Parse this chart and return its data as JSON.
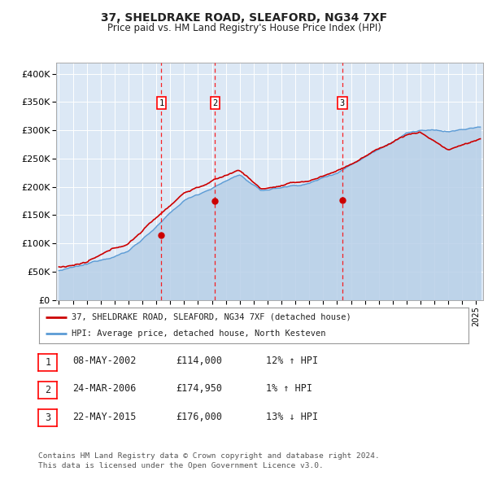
{
  "title": "37, SHELDRAKE ROAD, SLEAFORD, NG34 7XF",
  "subtitle": "Price paid vs. HM Land Registry's House Price Index (HPI)",
  "ylabel_ticks": [
    "£0",
    "£50K",
    "£100K",
    "£150K",
    "£200K",
    "£250K",
    "£300K",
    "£350K",
    "£400K"
  ],
  "ytick_values": [
    0,
    50000,
    100000,
    150000,
    200000,
    250000,
    300000,
    350000,
    400000
  ],
  "ylim": [
    0,
    420000
  ],
  "xlim_start": 1994.8,
  "xlim_end": 2025.5,
  "sale_dates": [
    2002.37,
    2006.23,
    2015.38
  ],
  "sale_prices": [
    114000,
    174950,
    176000
  ],
  "sale_labels": [
    "1",
    "2",
    "3"
  ],
  "hpi_color": "#b8d0e8",
  "price_color": "#cc0000",
  "legend_price_label": "37, SHELDRAKE ROAD, SLEAFORD, NG34 7XF (detached house)",
  "legend_hpi_label": "HPI: Average price, detached house, North Kesteven",
  "table_rows": [
    [
      "1",
      "08-MAY-2002",
      "£114,000",
      "12% ↑ HPI"
    ],
    [
      "2",
      "24-MAR-2006",
      "£174,950",
      "1% ↑ HPI"
    ],
    [
      "3",
      "22-MAY-2015",
      "£176,000",
      "13% ↓ HPI"
    ]
  ],
  "footer": "Contains HM Land Registry data © Crown copyright and database right 2024.\nThis data is licensed under the Open Government Licence v3.0.",
  "background_color": "#ffffff",
  "plot_bg_color": "#dce8f5"
}
